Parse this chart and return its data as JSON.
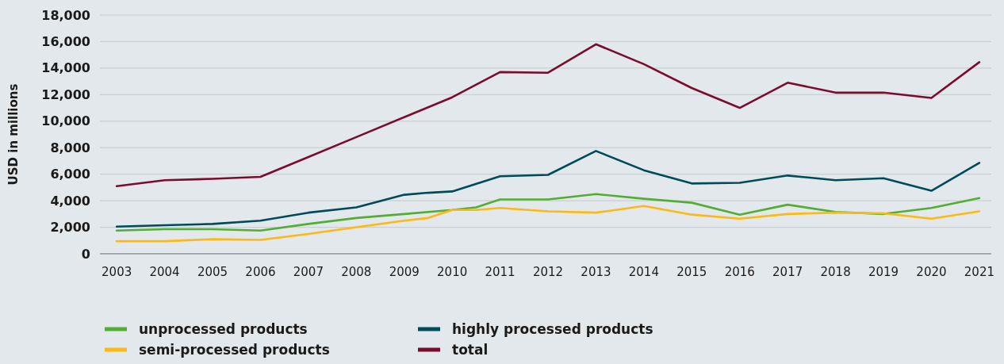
{
  "chart_data": {
    "type": "line",
    "ylabel": "USD in millions",
    "xlim": [
      2002.65,
      2021.25
    ],
    "xticks": [
      2003,
      2004,
      2005,
      2006,
      2007,
      2008,
      2009,
      2010,
      2011,
      2012,
      2013,
      2014,
      2015,
      2016,
      2017,
      2018,
      2019,
      2020,
      2021
    ],
    "ylim": [
      0,
      18000
    ],
    "yticks": [
      {
        "value": 0,
        "label": "0"
      },
      {
        "value": 2000,
        "label": "2,000"
      },
      {
        "value": 4000,
        "label": "4,000"
      },
      {
        "value": 6000,
        "label": "6,000"
      },
      {
        "value": 8000,
        "label": "8,000"
      },
      {
        "value": 10000,
        "label": "10,000"
      },
      {
        "value": 12000,
        "label": "12,000"
      },
      {
        "value": 14000,
        "label": "14,000"
      },
      {
        "value": 16000,
        "label": "16,000"
      },
      {
        "value": 18000,
        "label": "18,000"
      }
    ],
    "grid": "y",
    "legend": "bottom",
    "series": [
      {
        "name": "unprocessed products",
        "color": "#52ae32",
        "x": [
          2003,
          2004,
          2005,
          2006,
          2007,
          2008,
          2009,
          2010,
          2010.5,
          2011,
          2012,
          2013,
          2014,
          2015,
          2016,
          2017,
          2018,
          2019,
          2020,
          2021
        ],
        "values": [
          1750,
          1850,
          1850,
          1750,
          2250,
          2700,
          3000,
          3300,
          3500,
          4100,
          4100,
          4500,
          4150,
          3850,
          2950,
          3700,
          3150,
          3000,
          3450,
          4200
        ]
      },
      {
        "name": "semi-processed products",
        "color": "#fdb913",
        "x": [
          2003,
          2004,
          2005,
          2006,
          2007,
          2008,
          2009,
          2009.5,
          2010,
          2010.5,
          2011,
          2012,
          2013,
          2014,
          2015,
          2016,
          2017,
          2018,
          2019,
          2020,
          2021
        ],
        "values": [
          950,
          950,
          1100,
          1050,
          1500,
          2000,
          2500,
          2700,
          3300,
          3300,
          3450,
          3200,
          3100,
          3600,
          2950,
          2650,
          3000,
          3100,
          3050,
          2650,
          3200
        ]
      },
      {
        "name": "highly processed products",
        "color": "#004b5a",
        "x": [
          2003,
          2004,
          2005,
          2006,
          2007,
          2008,
          2009,
          2009.5,
          2010,
          2011,
          2012,
          2013,
          2014,
          2015,
          2016,
          2017,
          2018,
          2019,
          2020,
          2021
        ],
        "values": [
          2050,
          2150,
          2250,
          2500,
          3100,
          3500,
          4450,
          4600,
          4700,
          5850,
          5950,
          7750,
          6300,
          5300,
          5350,
          5900,
          5550,
          5700,
          4750,
          6850
        ]
      },
      {
        "name": "total",
        "color": "#7b0c2e",
        "x": [
          2003,
          2004,
          2005,
          2006,
          2007,
          2008,
          2009,
          2010,
          2011,
          2012,
          2013,
          2014,
          2015,
          2016,
          2017,
          2018,
          2019,
          2020,
          2021
        ],
        "values": [
          5100,
          5550,
          5650,
          5800,
          7300,
          8800,
          10300,
          11800,
          13700,
          13650,
          15800,
          14300,
          12500,
          11000,
          12900,
          12150,
          12150,
          11750,
          14450
        ]
      }
    ]
  }
}
